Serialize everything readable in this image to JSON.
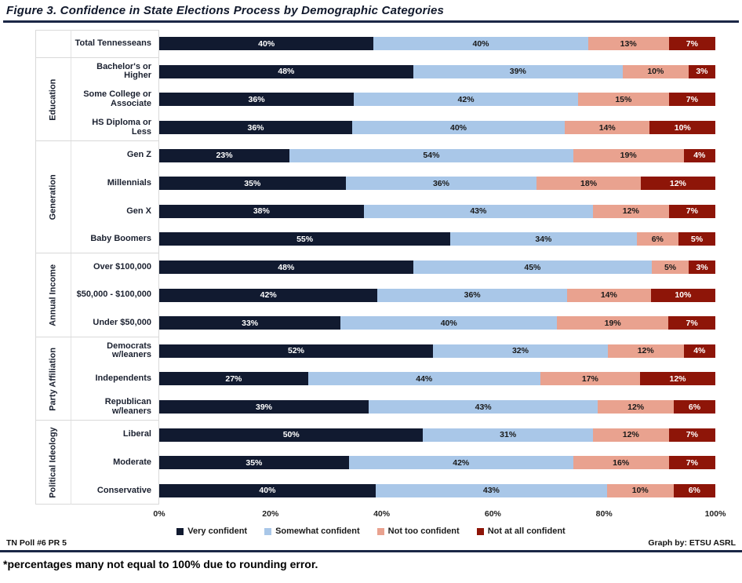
{
  "title": "Figure 3. Confidence in State Elections Process by Demographic Categories",
  "footnote": "*percentages many not equal to 100% due to rounding error.",
  "footer": {
    "left": "TN Poll #6 PR 5",
    "right": "Graph by: ETSU ASRL"
  },
  "chart_data": {
    "type": "bar",
    "orientation": "horizontal-100%-stacked",
    "legend_position": "bottom",
    "grid": false,
    "xlim": [
      0,
      100
    ],
    "x_ticks": [
      "0%",
      "20%",
      "40%",
      "60%",
      "80%",
      "100%"
    ],
    "series_names": [
      "Very confident",
      "Somewhat confident",
      "Not too confident",
      "Not at all confident"
    ],
    "series_colors": [
      "#111a30",
      "#a9c7e8",
      "#e9a28f",
      "#8e1508"
    ],
    "series_label_text_colors": [
      "#ffffff",
      "#1a1a1a",
      "#1a1a1a",
      "#ffffff"
    ],
    "groups": [
      {
        "group": "",
        "rows": [
          {
            "label": "Total Tennesseans",
            "values": [
              40,
              40,
              13,
              7
            ]
          }
        ]
      },
      {
        "group": "Education",
        "rows": [
          {
            "label": "Bachelor's or Higher",
            "values": [
              48,
              39,
              10,
              3
            ]
          },
          {
            "label": "Some College or Associate",
            "values": [
              36,
              42,
              15,
              7
            ]
          },
          {
            "label": "HS Diploma or Less",
            "values": [
              36,
              40,
              14,
              10
            ]
          }
        ]
      },
      {
        "group": "Generation",
        "rows": [
          {
            "label": "Gen Z",
            "values": [
              23,
              54,
              19,
              4
            ]
          },
          {
            "label": "Millennials",
            "values": [
              35,
              36,
              18,
              12
            ]
          },
          {
            "label": "Gen X",
            "values": [
              38,
              43,
              12,
              7
            ]
          },
          {
            "label": "Baby Boomers",
            "values": [
              55,
              34,
              6,
              5
            ]
          }
        ]
      },
      {
        "group": "Annual Income",
        "rows": [
          {
            "label": "Over $100,000",
            "values": [
              48,
              45,
              5,
              3
            ]
          },
          {
            "label": "$50,000 - $100,000",
            "values": [
              42,
              36,
              14,
              10
            ]
          },
          {
            "label": "Under $50,000",
            "values": [
              33,
              40,
              19,
              7
            ]
          }
        ]
      },
      {
        "group": "Party Affiliation",
        "rows": [
          {
            "label": "Democrats w/leaners",
            "values": [
              52,
              32,
              12,
              4
            ]
          },
          {
            "label": "Independents",
            "values": [
              27,
              44,
              17,
              12
            ]
          },
          {
            "label": "Republican w/leaners",
            "values": [
              39,
              43,
              12,
              6
            ]
          }
        ]
      },
      {
        "group": "Political Ideology",
        "rows": [
          {
            "label": "Liberal",
            "values": [
              50,
              31,
              12,
              7
            ]
          },
          {
            "label": "Moderate",
            "values": [
              35,
              42,
              16,
              7
            ]
          },
          {
            "label": "Conservative",
            "values": [
              40,
              43,
              10,
              6
            ]
          }
        ]
      }
    ]
  }
}
